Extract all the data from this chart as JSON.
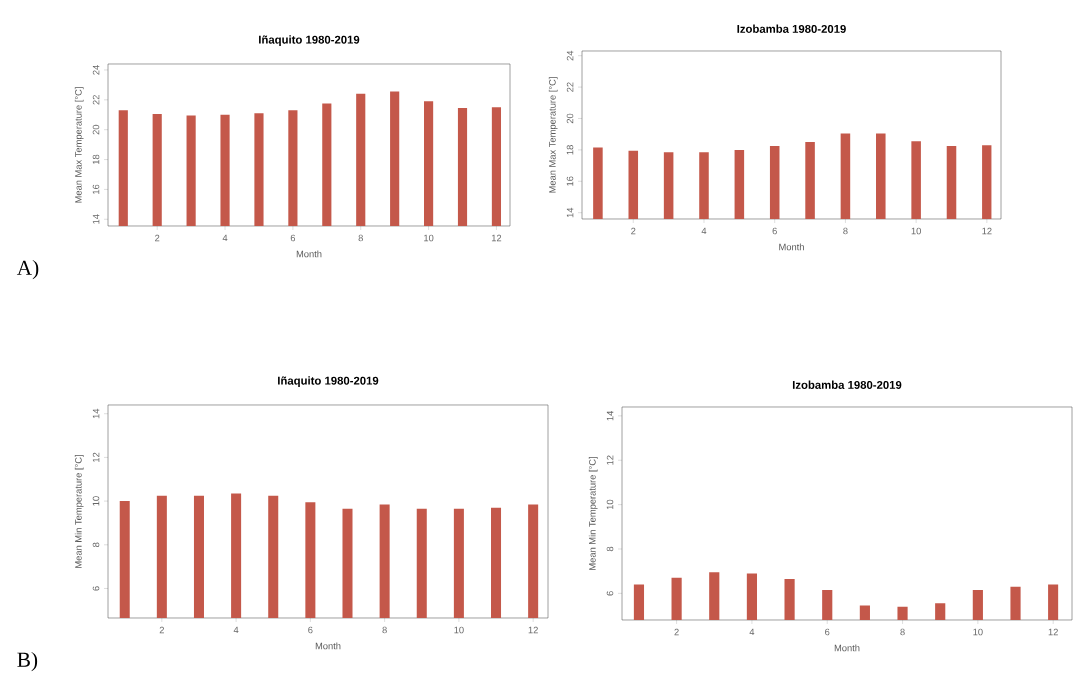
{
  "chart_data": [
    {
      "type": "bar",
      "title": "Iñaquito 1980-2019",
      "xlabel": "Month",
      "ylabel": "Mean Max Temperature [°C]",
      "color": "#c4584a",
      "x": [
        1,
        2,
        3,
        4,
        5,
        6,
        7,
        8,
        9,
        10,
        11,
        12
      ],
      "values": [
        21.3,
        21.05,
        20.95,
        21.0,
        21.1,
        21.3,
        21.75,
        22.4,
        22.55,
        21.9,
        21.45,
        21.5
      ],
      "xlim": [
        0.55,
        12.4
      ],
      "ylim": [
        13.55,
        24.4
      ],
      "xticks": [
        2,
        4,
        6,
        8,
        10,
        12
      ],
      "yticks": [
        14,
        16,
        18,
        20,
        22,
        24
      ],
      "annotations": [
        "A)"
      ]
    },
    {
      "type": "bar",
      "title": "Izobamba 1980-2019",
      "xlabel": "Month",
      "ylabel": "Mean Max Temperature [°C]",
      "color": "#c4584a",
      "x": [
        1,
        2,
        3,
        4,
        5,
        6,
        7,
        8,
        9,
        10,
        11,
        12
      ],
      "values": [
        18.15,
        17.95,
        17.85,
        17.85,
        18.0,
        18.25,
        18.5,
        19.05,
        19.05,
        18.55,
        18.25,
        18.3
      ],
      "xlim": [
        0.55,
        12.4
      ],
      "ylim": [
        13.6,
        24.3
      ],
      "xticks": [
        2,
        4,
        6,
        8,
        10,
        12
      ],
      "yticks": [
        14,
        16,
        18,
        20,
        22,
        24
      ]
    },
    {
      "type": "bar",
      "title": "Iñaquito 1980-2019",
      "xlabel": "Month",
      "ylabel": "Mean Min Temperature [°C]",
      "color": "#c4584a",
      "x": [
        1,
        2,
        3,
        4,
        5,
        6,
        7,
        8,
        9,
        10,
        11,
        12
      ],
      "values": [
        10.0,
        10.25,
        10.25,
        10.35,
        10.25,
        9.95,
        9.65,
        9.85,
        9.65,
        9.65,
        9.7,
        9.85
      ],
      "xlim": [
        0.55,
        12.4
      ],
      "ylim": [
        4.65,
        14.4
      ],
      "xticks": [
        2,
        4,
        6,
        8,
        10,
        12
      ],
      "yticks": [
        6,
        8,
        10,
        12,
        14
      ],
      "annotations": [
        "B)"
      ]
    },
    {
      "type": "bar",
      "title": "Izobamba 1980-2019",
      "xlabel": "Month",
      "ylabel": "Mean Min Temperature [°C]",
      "color": "#c4584a",
      "x": [
        1,
        2,
        3,
        4,
        5,
        6,
        7,
        8,
        9,
        10,
        11,
        12
      ],
      "values": [
        6.4,
        6.7,
        6.95,
        6.9,
        6.65,
        6.15,
        5.45,
        5.4,
        5.55,
        6.15,
        6.3,
        6.4
      ],
      "xlim": [
        0.55,
        12.5
      ],
      "ylim": [
        4.8,
        14.4
      ],
      "xticks": [
        2,
        4,
        6,
        8,
        10,
        12
      ],
      "yticks": [
        6,
        8,
        10,
        12,
        14
      ]
    }
  ]
}
